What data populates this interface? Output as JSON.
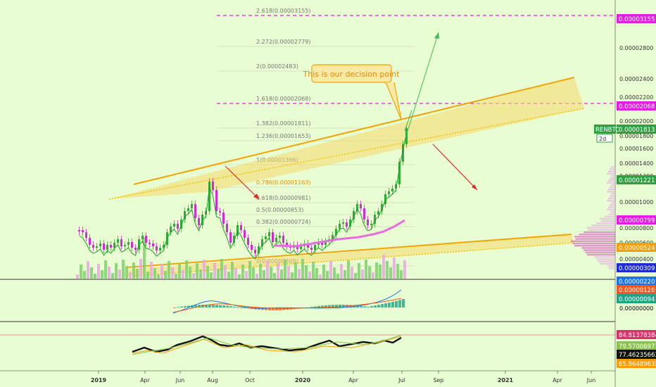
{
  "chart_data": {
    "type": "candlestick",
    "symbol_tag": "RENBTC",
    "timeframe_tag": "2d",
    "annotation": "This is our decision point",
    "x_axis_labels": [
      "2019",
      "Apr",
      "Jun",
      "Aug",
      "Oct",
      "2020",
      "Apr",
      "Jul",
      "Sep",
      "2021",
      "Apr",
      "Jun"
    ],
    "price_axis_ticks": [
      "0.00000000",
      "0.00000400",
      "0.00000600",
      "0.00000800",
      "0.00001000",
      "0.00001200",
      "0.00001400",
      "0.00001600",
      "0.00001800",
      "0.00002000",
      "0.00002200",
      "0.00002400",
      "0.00002800"
    ],
    "price_tags": [
      {
        "value": "0.00003155",
        "color": "#e01fe0"
      },
      {
        "value": "0.00002068",
        "color": "#e01fe0"
      },
      {
        "value": "0.00001813",
        "color": "#2ea043",
        "prefix": "RENBTC"
      },
      {
        "value": "0.00001221",
        "color": "#2ea043"
      },
      {
        "value": "0.00000799",
        "color": "#e01fe0"
      },
      {
        "value": "0.00000524",
        "color": "#f59e0b"
      },
      {
        "value": "0.00000309",
        "color": "#1e2bd6"
      }
    ],
    "fibonacci_levels": [
      {
        "ratio": "2.618",
        "price": "0.00003155"
      },
      {
        "ratio": "2.272",
        "price": "0.00002779"
      },
      {
        "ratio": "2",
        "price": "0.00002483"
      },
      {
        "ratio": "1.618",
        "price": "0.00002068"
      },
      {
        "ratio": "1.382",
        "price": "0.00001811"
      },
      {
        "ratio": "1.236",
        "price": "0.00001653"
      },
      {
        "ratio": "1",
        "price": "0.00001396"
      },
      {
        "ratio": "0.786",
        "price": "0.00001163"
      },
      {
        "ratio": "0.618",
        "price": "0.00000981"
      },
      {
        "ratio": "0.5",
        "price": "0.00000853"
      },
      {
        "ratio": "0.382",
        "price": "0.00000724"
      },
      {
        "ratio": "0",
        "price": "0.00000309"
      }
    ],
    "volume_tags": [
      {
        "value": "0.00000220",
        "color": "#1a73e8"
      },
      {
        "value": "0.00000126",
        "color": "#f0581c"
      },
      {
        "value": "0.00000094",
        "color": "#1fa383"
      },
      {
        "value": "0.00000000",
        "color": ""
      }
    ],
    "oscillator_tags": [
      {
        "value": "84.81378384",
        "color": "#e0306a"
      },
      {
        "value": "79.57006977",
        "color": "#8bc34a"
      },
      {
        "value": "77.46235663",
        "color": "#111111"
      },
      {
        "value": "65.86489632",
        "color": "#f59e0b"
      }
    ],
    "price_series": [
      {
        "t": "2019-01",
        "close": 7.5e-06
      },
      {
        "t": "2019-02",
        "close": 5.8e-06
      },
      {
        "t": "2019-03",
        "close": 5.6e-06
      },
      {
        "t": "2019-04",
        "close": 6.1e-06
      },
      {
        "t": "2019-05",
        "close": 6.3e-06
      },
      {
        "t": "2019-06",
        "close": 7.6e-06
      },
      {
        "t": "2019-07",
        "close": 1.3e-05
      },
      {
        "t": "2019-08",
        "close": 8e-06
      },
      {
        "t": "2019-09",
        "close": 5.8e-06
      },
      {
        "t": "2019-10",
        "close": 7.1e-06
      },
      {
        "t": "2019-11",
        "close": 6.5e-06
      },
      {
        "t": "2019-12",
        "close": 5.3e-06
      },
      {
        "t": "2020-01",
        "close": 5.5e-06
      },
      {
        "t": "2020-02",
        "close": 6.8e-06
      },
      {
        "t": "2020-03",
        "close": 8.5e-06
      },
      {
        "t": "2020-04",
        "close": 8e-06
      },
      {
        "t": "2020-05",
        "close": 9.5e-06
      },
      {
        "t": "2020-06",
        "close": 1.22e-05
      },
      {
        "t": "2020-06b",
        "close": 1.81e-05
      }
    ]
  }
}
